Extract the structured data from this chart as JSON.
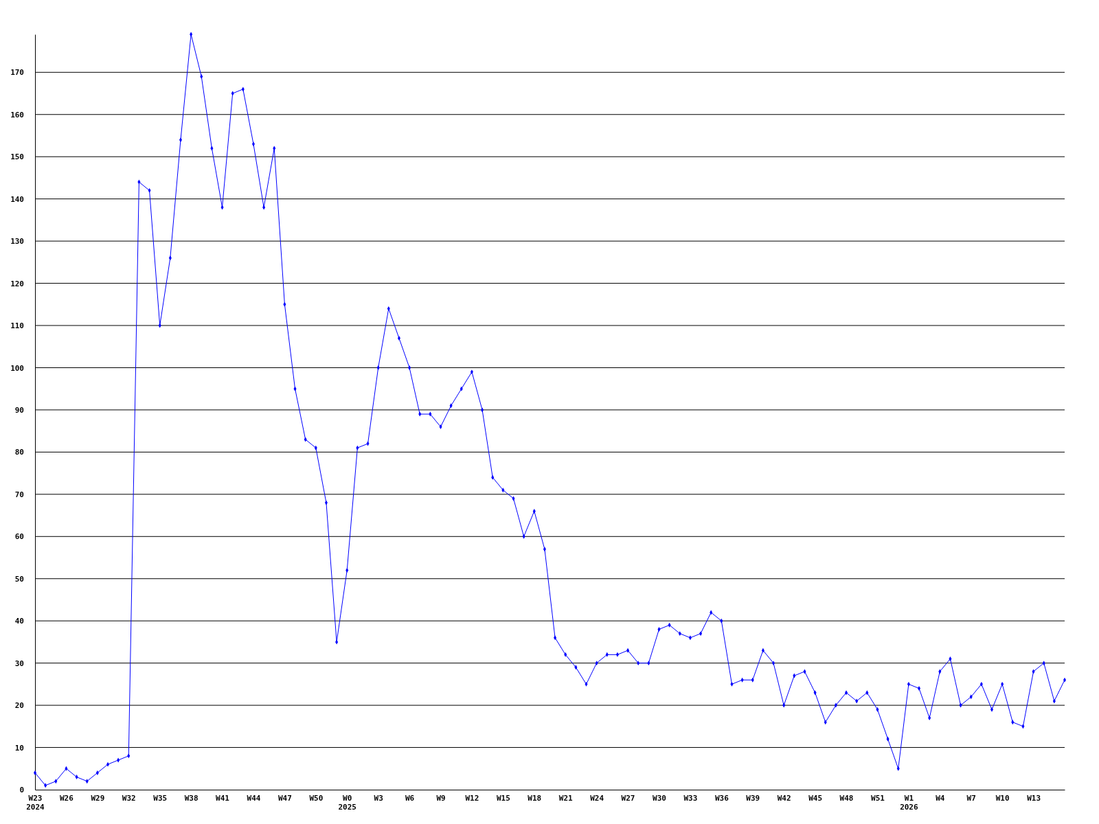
{
  "chart_data": {
    "type": "line",
    "categories": [
      "W23\n2024",
      null,
      null,
      "W26",
      null,
      null,
      "W29",
      null,
      null,
      "W32",
      null,
      null,
      "W35",
      null,
      null,
      "W38",
      null,
      null,
      "W41",
      null,
      null,
      "W44",
      null,
      null,
      "W47",
      null,
      null,
      "W50",
      null,
      null,
      "W0\n2025",
      null,
      null,
      "W3",
      null,
      null,
      "W6",
      null,
      null,
      "W9",
      null,
      null,
      "W12",
      null,
      null,
      "W15",
      null,
      null,
      "W18",
      null,
      null,
      "W21",
      null,
      null,
      "W24",
      null,
      null,
      "W27",
      null,
      null,
      "W30",
      null,
      null,
      "W33",
      null,
      null,
      "W36",
      null,
      null,
      "W39",
      null,
      null,
      "W42",
      null,
      null,
      "W45",
      null,
      null,
      "W48",
      null,
      null,
      "W51",
      null,
      null,
      "W1\n2026",
      null,
      null,
      "W4",
      null,
      null,
      "W7",
      null,
      null,
      "W10",
      null,
      null,
      "W13",
      null,
      null,
      null
    ],
    "series": [
      {
        "color": "#0000ff",
        "values": [
          4,
          1,
          2,
          5,
          3,
          2,
          4,
          6,
          7,
          8,
          144,
          142,
          110,
          126,
          154,
          179,
          169,
          152,
          138,
          165,
          166,
          153,
          138,
          152,
          115,
          95,
          83,
          81,
          68,
          35,
          52,
          81,
          82,
          100,
          114,
          107,
          100,
          89,
          89,
          86,
          91,
          95,
          99,
          90,
          74,
          71,
          69,
          60,
          66,
          57,
          36,
          32,
          29,
          25,
          30,
          32,
          32,
          33,
          30,
          30,
          38,
          39,
          37,
          36,
          37,
          42,
          40,
          25,
          26,
          26,
          33,
          30,
          20,
          27,
          28,
          23,
          16,
          20,
          23,
          21,
          23,
          19,
          12,
          5,
          25,
          24,
          17,
          28,
          31,
          20,
          22,
          25,
          19,
          25,
          16,
          15,
          28,
          30,
          21,
          26
        ]
      }
    ],
    "ylim": [
      0,
      179
    ],
    "yticks": [
      0,
      10,
      20,
      30,
      40,
      50,
      60,
      70,
      80,
      90,
      100,
      110,
      120,
      130,
      140,
      150,
      160,
      170
    ],
    "grid": "y",
    "marker": "diamond",
    "line_style": "solid"
  }
}
